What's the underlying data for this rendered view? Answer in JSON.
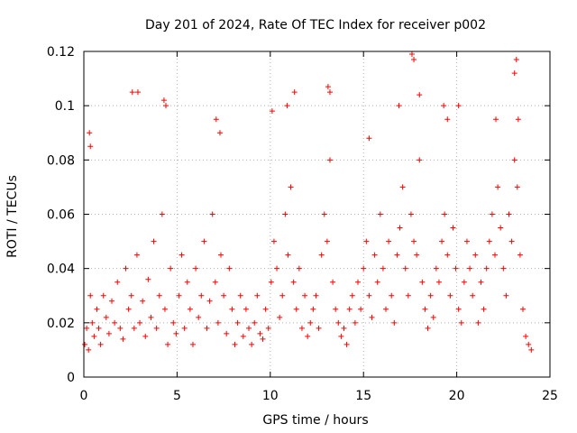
{
  "chart_data": {
    "type": "scatter",
    "title": "Day 201 of 2024, Rate Of TEC Index for receiver p002",
    "xlabel": "GPS time / hours",
    "ylabel": "ROTI / TECUs",
    "xlim": [
      0,
      25
    ],
    "ylim": [
      0,
      0.12
    ],
    "xticks": [
      0,
      5,
      10,
      15,
      20,
      25
    ],
    "xtick_labels": [
      "0",
      "5",
      "10",
      "15",
      "20",
      "25"
    ],
    "yticks": [
      0,
      0.02,
      0.04,
      0.06,
      0.08,
      0.1,
      0.12
    ],
    "ytick_labels": [
      "0",
      "0.02",
      "0.04",
      "0.06",
      "0.08",
      "0.1",
      "0.12"
    ],
    "grid": true,
    "marker": "plus",
    "color": "#ff0000",
    "series": [
      {
        "name": "ROTI",
        "x": [
          0.05,
          0.15,
          0.25,
          0.35,
          0.45,
          0.55,
          0.7,
          0.8,
          0.9,
          1.05,
          1.2,
          1.35,
          1.5,
          1.65,
          1.8,
          1.95,
          2.1,
          2.25,
          2.4,
          2.55,
          2.7,
          2.85,
          3.0,
          3.15,
          3.3,
          3.45,
          3.6,
          3.75,
          3.9,
          4.05,
          4.2,
          4.35,
          4.5,
          4.65,
          4.8,
          4.95,
          5.1,
          5.25,
          5.4,
          5.55,
          5.7,
          5.85,
          6.0,
          6.15,
          6.3,
          6.45,
          6.6,
          6.75,
          6.9,
          7.05,
          7.2,
          7.35,
          7.5,
          7.65,
          7.8,
          7.95,
          8.1,
          8.25,
          8.4,
          8.55,
          8.7,
          8.85,
          9.0,
          9.15,
          9.3,
          9.45,
          9.6,
          9.75,
          9.9,
          10.05,
          10.2,
          10.35,
          10.5,
          10.65,
          10.8,
          10.95,
          11.1,
          11.25,
          11.4,
          11.55,
          11.7,
          11.85,
          12.0,
          12.15,
          12.3,
          12.45,
          12.6,
          12.75,
          12.9,
          13.05,
          13.2,
          13.35,
          13.5,
          13.65,
          13.8,
          13.95,
          14.1,
          14.25,
          14.4,
          14.55,
          14.7,
          14.85,
          15.0,
          15.15,
          15.3,
          15.45,
          15.6,
          15.75,
          15.9,
          16.05,
          16.2,
          16.35,
          16.5,
          16.65,
          16.8,
          16.95,
          17.1,
          17.25,
          17.4,
          17.55,
          17.7,
          17.85,
          18.0,
          18.15,
          18.3,
          18.45,
          18.6,
          18.75,
          18.9,
          19.05,
          19.2,
          19.35,
          19.5,
          19.65,
          19.8,
          19.95,
          20.1,
          20.25,
          20.4,
          20.55,
          20.7,
          20.85,
          21.0,
          21.15,
          21.3,
          21.45,
          21.6,
          21.75,
          21.9,
          22.05,
          22.2,
          22.35,
          22.5,
          22.65,
          22.8,
          22.95,
          23.1,
          23.25,
          23.4,
          23.55,
          23.7,
          23.85,
          24.0,
          0.3,
          0.35,
          2.6,
          2.9,
          4.3,
          4.4,
          7.1,
          7.3,
          10.1,
          10.9,
          11.3,
          13.1,
          13.2,
          15.3,
          16.9,
          17.6,
          17.7,
          18.0,
          19.3,
          19.5,
          20.1,
          22.1,
          23.1,
          23.2,
          23.3
        ],
        "y": [
          0.012,
          0.018,
          0.01,
          0.03,
          0.02,
          0.015,
          0.025,
          0.018,
          0.012,
          0.03,
          0.022,
          0.016,
          0.028,
          0.02,
          0.035,
          0.018,
          0.014,
          0.04,
          0.025,
          0.03,
          0.018,
          0.045,
          0.02,
          0.028,
          0.015,
          0.036,
          0.022,
          0.05,
          0.018,
          0.03,
          0.06,
          0.025,
          0.012,
          0.04,
          0.02,
          0.016,
          0.03,
          0.045,
          0.018,
          0.035,
          0.025,
          0.012,
          0.04,
          0.022,
          0.03,
          0.05,
          0.018,
          0.028,
          0.06,
          0.035,
          0.02,
          0.045,
          0.03,
          0.016,
          0.04,
          0.025,
          0.012,
          0.02,
          0.03,
          0.015,
          0.025,
          0.018,
          0.012,
          0.02,
          0.03,
          0.016,
          0.014,
          0.025,
          0.018,
          0.035,
          0.05,
          0.04,
          0.022,
          0.03,
          0.06,
          0.045,
          0.07,
          0.035,
          0.025,
          0.04,
          0.018,
          0.03,
          0.015,
          0.02,
          0.025,
          0.03,
          0.018,
          0.045,
          0.06,
          0.05,
          0.08,
          0.035,
          0.025,
          0.02,
          0.015,
          0.018,
          0.012,
          0.025,
          0.03,
          0.02,
          0.035,
          0.025,
          0.04,
          0.05,
          0.03,
          0.022,
          0.045,
          0.035,
          0.06,
          0.04,
          0.025,
          0.05,
          0.03,
          0.02,
          0.045,
          0.055,
          0.07,
          0.04,
          0.03,
          0.06,
          0.05,
          0.045,
          0.08,
          0.035,
          0.025,
          0.018,
          0.03,
          0.022,
          0.04,
          0.035,
          0.05,
          0.06,
          0.045,
          0.03,
          0.055,
          0.04,
          0.025,
          0.02,
          0.035,
          0.05,
          0.04,
          0.03,
          0.045,
          0.02,
          0.035,
          0.025,
          0.04,
          0.05,
          0.06,
          0.045,
          0.07,
          0.055,
          0.04,
          0.03,
          0.06,
          0.05,
          0.08,
          0.07,
          0.045,
          0.025,
          0.015,
          0.012,
          0.01,
          0.09,
          0.085,
          0.105,
          0.105,
          0.102,
          0.1,
          0.095,
          0.09,
          0.098,
          0.1,
          0.105,
          0.107,
          0.105,
          0.088,
          0.1,
          0.119,
          0.117,
          0.104,
          0.1,
          0.095,
          0.1,
          0.095,
          0.112,
          0.117,
          0.095
        ]
      }
    ]
  }
}
